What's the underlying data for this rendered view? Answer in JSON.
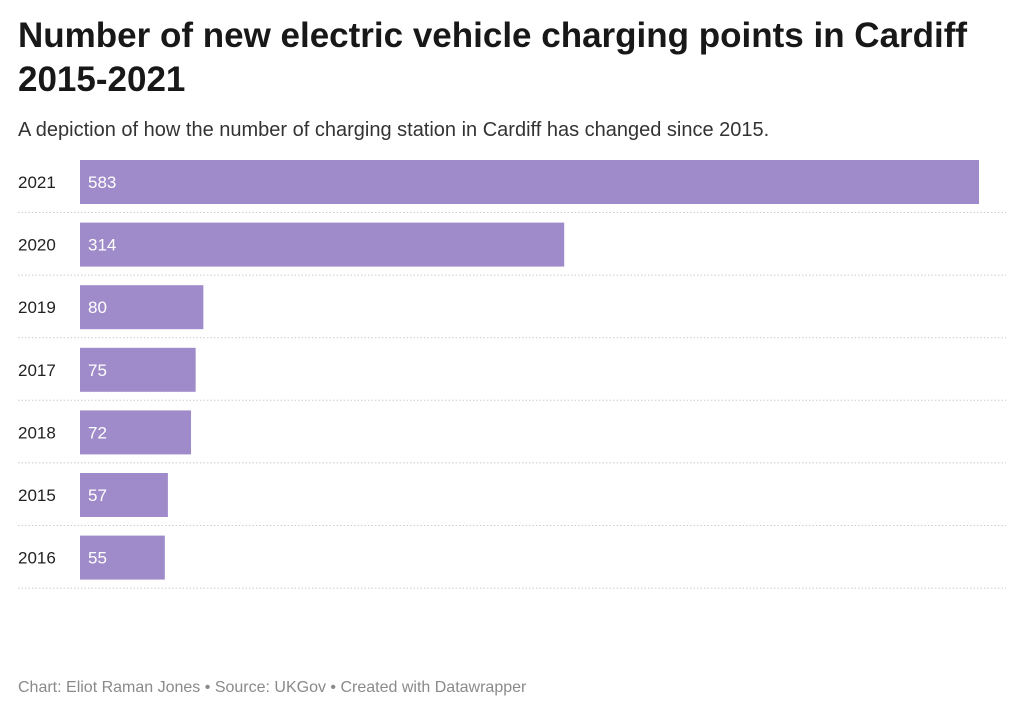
{
  "header": {
    "title": "Number of new electric vehicle charging points in Cardiff 2015-2021",
    "subtitle": "A depiction of how the number of charging station in Cardiff has changed since 2015."
  },
  "footer": {
    "credit_label": "Chart: ",
    "author": "Eliot Raman Jones",
    "separator": " • ",
    "source_label": "Source: ",
    "source": "UKGov",
    "created_with": "Created with Datawrapper"
  },
  "colors": {
    "bar": "#9f8bc9",
    "bar_label": "#ffffff",
    "category_label": "#222222",
    "gridline": "#cccccc"
  },
  "chart_data": {
    "type": "bar",
    "orientation": "horizontal",
    "categories": [
      "2021",
      "2020",
      "2019",
      "2017",
      "2018",
      "2015",
      "2016"
    ],
    "values": [
      583,
      314,
      80,
      75,
      72,
      57,
      55
    ],
    "title": "Number of new electric vehicle charging points in Cardiff 2015-2021",
    "subtitle": "A depiction of how the number of charging station in Cardiff has changed since 2015.",
    "xlim": [
      0,
      583
    ],
    "value_labels": "inside-bar",
    "grid": false
  }
}
